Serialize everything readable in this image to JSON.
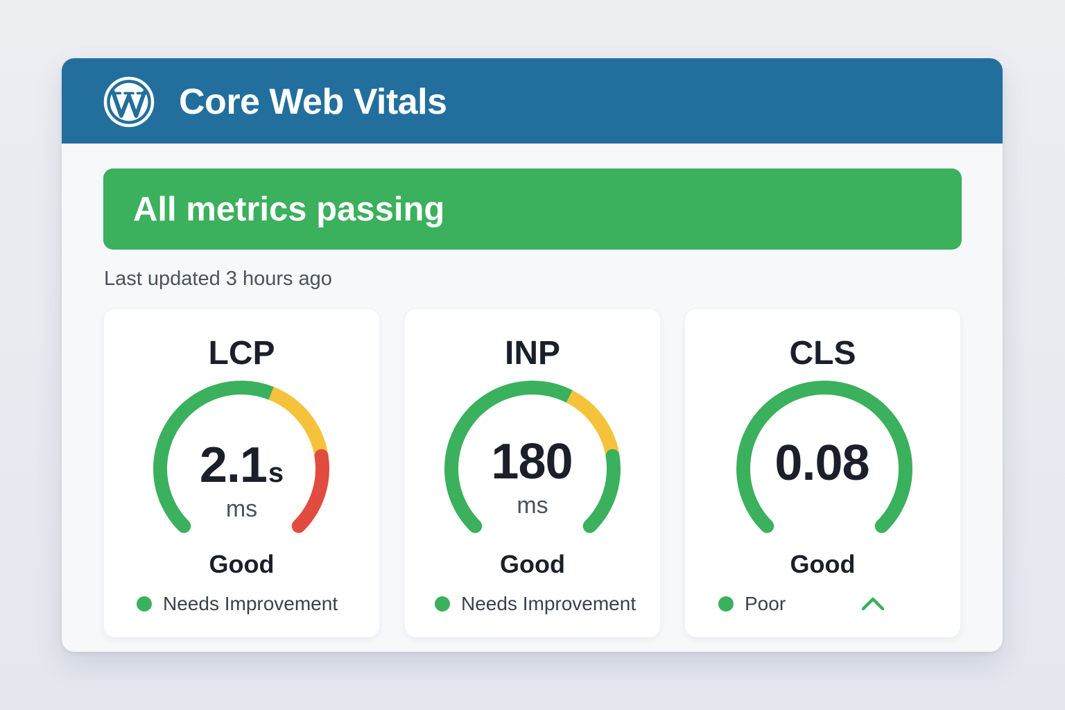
{
  "header": {
    "title": "Core Web Vitals",
    "logo_icon": "wordpress-logo-icon"
  },
  "status": {
    "text": "All metrics passing",
    "color": "#3bb05d"
  },
  "last_updated": "Last updated 3 hours ago",
  "colors": {
    "header": "#226f9d",
    "good": "#3bb05d",
    "needs_improvement": "#f5c33b",
    "poor": "#e04c40"
  },
  "metrics": [
    {
      "name": "LCP",
      "value": "2.1",
      "suffix": "s",
      "unit": "ms",
      "rating": "Good",
      "legend": "Needs Improvement",
      "gauge_segments": [
        {
          "color": "good",
          "fraction": 0.58
        },
        {
          "color": "needs_improvement",
          "fraction": 0.22
        },
        {
          "color": "poor",
          "fraction": 0.2
        }
      ]
    },
    {
      "name": "INP",
      "value": "180",
      "suffix": "",
      "unit": "ms",
      "rating": "Good",
      "legend": "Needs Improvement",
      "gauge_segments": [
        {
          "color": "good",
          "fraction": 0.6
        },
        {
          "color": "needs_improvement",
          "fraction": 0.2
        },
        {
          "color": "good",
          "fraction": 0.2
        }
      ]
    },
    {
      "name": "CLS",
      "value": "0.08",
      "suffix": "",
      "unit": "",
      "rating": "Good",
      "legend": "Poor",
      "expand_icon": "chevron-up-icon",
      "gauge_segments": [
        {
          "color": "good",
          "fraction": 1.0
        }
      ]
    }
  ]
}
